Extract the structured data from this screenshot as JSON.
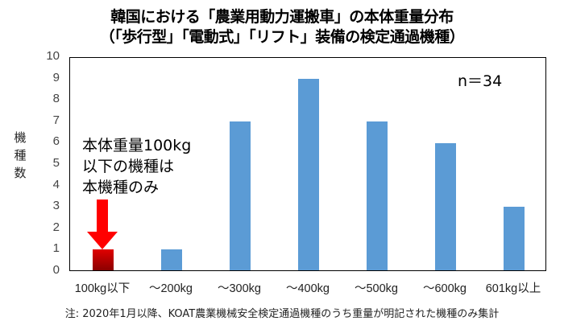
{
  "title_line1": "韓国における「農業用動力運搬車」の本体重量分布",
  "title_line2": "（「歩行型」「電動式」「リフト」装備の検定通過機種）",
  "ylabel": "機種数",
  "annotation": [
    "本体重量100kg",
    "以下の機種は",
    "本機種のみ"
  ],
  "sample_size": "n＝34",
  "note": "注: 2020年1月以降、KOAT農業機械安全検定通過機種のうち重量が明記された機種のみ集計",
  "colors": {
    "bar": "#5b9bd5",
    "highlight": "#c00000",
    "arrow": "#ff0000"
  },
  "chart_data": {
    "type": "bar",
    "title": "韓国における「農業用動力運搬車」の本体重量分布（「歩行型」「電動式」「リフト」装備の検定通過機種）",
    "xlabel": "",
    "ylabel": "機種数",
    "categories": [
      "100kg以下",
      "～200kg",
      "～300kg",
      "～400kg",
      "～500kg",
      "～600kg",
      "601kg以上"
    ],
    "values": [
      1,
      1,
      7,
      9,
      7,
      6,
      3
    ],
    "ylim": [
      0,
      10
    ],
    "yticks": [
      "0",
      "1",
      "2",
      "3",
      "4",
      "5",
      "6",
      "7",
      "8",
      "9",
      "10"
    ],
    "grid": false,
    "legend": null,
    "annotations": [
      "本体重量100kg以下の機種は本機種のみ",
      "n＝34"
    ]
  }
}
